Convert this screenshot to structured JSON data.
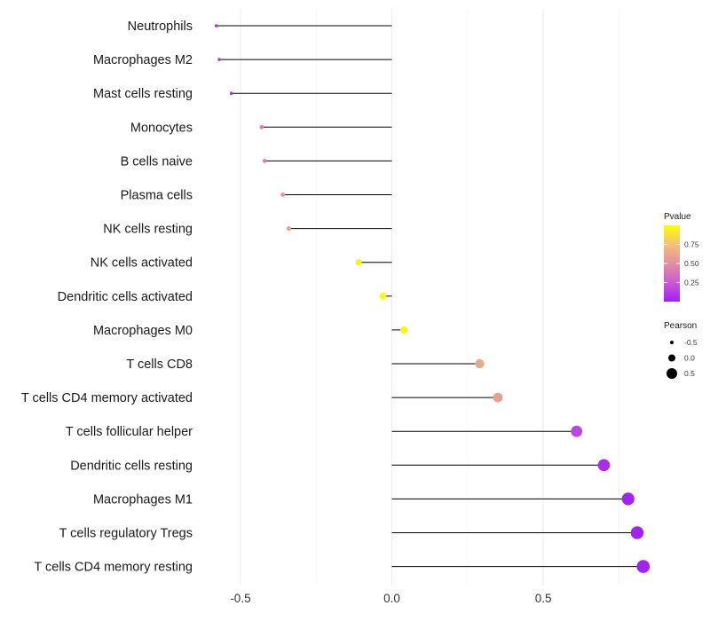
{
  "chart_data": {
    "type": "lollipop",
    "orientation": "horizontal",
    "title": "",
    "xlabel": "",
    "ylabel": "",
    "xlim": [
      -0.62,
      0.86
    ],
    "xticks": [
      -0.5,
      0.0,
      0.5
    ],
    "xtick_labels": [
      "-0.5",
      "0.0",
      "0.5"
    ],
    "grid": true,
    "baseline": 0.0,
    "categories": [
      "Neutrophils",
      "Macrophages M2",
      "Mast cells resting",
      "Monocytes",
      "B cells naive",
      "Plasma cells",
      "NK cells resting",
      "NK cells activated",
      "Dendritic cells activated",
      "Macrophages M0",
      "T cells CD8",
      "T cells CD4 memory activated",
      "T cells follicular helper",
      "Dendritic cells resting",
      "Macrophages M1",
      "T cells regulatory  Tregs ",
      "T cells CD4 memory resting"
    ],
    "pearson": [
      -0.58,
      -0.57,
      -0.53,
      -0.43,
      -0.42,
      -0.36,
      -0.34,
      -0.11,
      -0.03,
      0.04,
      0.29,
      0.35,
      0.61,
      0.7,
      0.78,
      0.81,
      0.83
    ],
    "pvalue": [
      0.03,
      0.04,
      0.09,
      0.4,
      0.4,
      0.55,
      0.6,
      0.95,
      0.98,
      0.97,
      0.62,
      0.58,
      0.17,
      0.06,
      0.02,
      0.01,
      0.01
    ],
    "legend": {
      "color": {
        "title": "Pvalue",
        "ticks": [
          0.25,
          0.5,
          0.75
        ],
        "tick_labels": [
          "0.25",
          "0.50",
          "0.75"
        ],
        "range": [
          0.0,
          1.0
        ],
        "gradient": [
          "#a020f0",
          "#cc58d8",
          "#e090a0",
          "#f2c07a",
          "#ffff00"
        ],
        "placement": "right"
      },
      "size": {
        "title": "Pearson",
        "values": [
          -0.5,
          0.0,
          0.5
        ],
        "labels": [
          "-0.5",
          "0.0",
          "0.5"
        ],
        "placement": "right"
      }
    }
  }
}
